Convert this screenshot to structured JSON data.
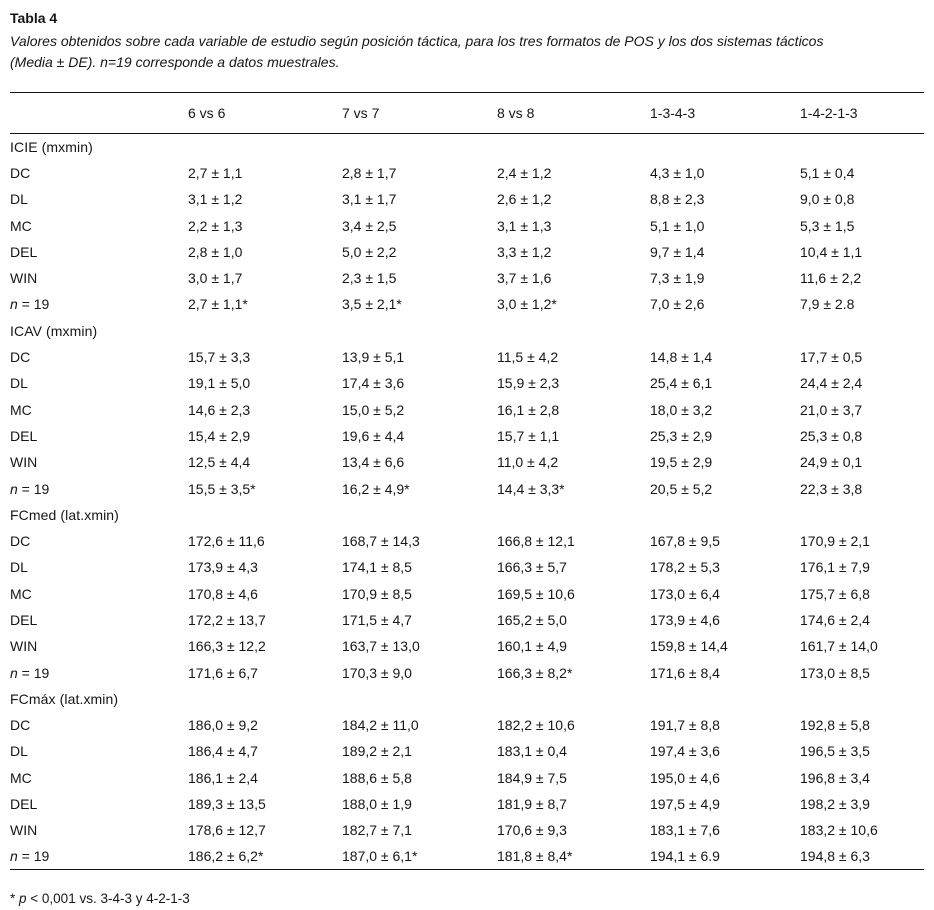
{
  "title": "Tabla 4",
  "caption": "Valores obtenidos sobre cada variable de estudio según posición táctica, para los tres formatos de POS y los dos sistemas tácticos (Media ± DE). n=19 corresponde a datos muestrales.",
  "table": {
    "columns": [
      "",
      "6 vs 6",
      "7 vs 7",
      "8 vs 8",
      "1-3-4-3",
      "1-4-2-1-3"
    ],
    "sections": [
      {
        "header": "ICIE (mxmin)",
        "rows": [
          {
            "label": "DC",
            "values": [
              "2,7 ± 1,1",
              "2,8 ± 1,7",
              "2,4 ± 1,2",
              "4,3 ± 1,0",
              "5,1 ± 0,4"
            ]
          },
          {
            "label": "DL",
            "values": [
              "3,1 ± 1,2",
              "3,1 ± 1,7",
              "2,6 ± 1,2",
              "8,8 ± 2,3",
              "9,0 ± 0,8"
            ]
          },
          {
            "label": "MC",
            "values": [
              "2,2 ± 1,3",
              "3,4 ± 2,5",
              "3,1 ± 1,3",
              "5,1 ± 1,0",
              "5,3 ± 1,5"
            ]
          },
          {
            "label": "DEL",
            "values": [
              "2,8 ± 1,0",
              "5,0 ± 2,2",
              "3,3 ± 1,2",
              "9,7 ± 1,4",
              "10,4 ± 1,1"
            ]
          },
          {
            "label": "WIN",
            "values": [
              "3,0 ± 1,7",
              "2,3 ± 1,5",
              "3,7 ± 1,6",
              "7,3 ± 1,9",
              "11,6 ± 2,2"
            ]
          },
          {
            "label": "n = 19",
            "italic_first": true,
            "values": [
              "2,7 ± 1,1*",
              "3,5 ± 2,1*",
              "3,0 ± 1,2*",
              "7,0 ± 2,6",
              "7,9 ± 2.8"
            ]
          }
        ]
      },
      {
        "header": "ICAV (mxmin)",
        "rows": [
          {
            "label": "DC",
            "values": [
              "15,7 ± 3,3",
              "13,9 ± 5,1",
              "11,5 ± 4,2",
              "14,8 ± 1,4",
              "17,7 ± 0,5"
            ]
          },
          {
            "label": "DL",
            "values": [
              "19,1 ± 5,0",
              "17,4 ± 3,6",
              "15,9 ± 2,3",
              "25,4 ± 6,1",
              "24,4 ± 2,4"
            ]
          },
          {
            "label": "MC",
            "values": [
              "14,6 ± 2,3",
              "15,0 ± 5,2",
              "16,1 ± 2,8",
              "18,0 ± 3,2",
              "21,0 ± 3,7"
            ]
          },
          {
            "label": "DEL",
            "values": [
              "15,4 ± 2,9",
              "19,6 ± 4,4",
              "15,7 ± 1,1",
              "25,3 ± 2,9",
              "25,3 ± 0,8"
            ]
          },
          {
            "label": "WIN",
            "values": [
              "12,5 ± 4,4",
              "13,4 ± 6,6",
              "11,0 ± 4,2",
              "19,5 ± 2,9",
              "24,9 ± 0,1"
            ]
          },
          {
            "label": "n = 19",
            "italic_first": true,
            "values": [
              "15,5 ± 3,5*",
              "16,2 ± 4,9*",
              "14,4 ± 3,3*",
              "20,5 ± 5,2",
              "22,3 ± 3,8"
            ]
          }
        ]
      },
      {
        "header": "FCmed  (lat.xmin)",
        "rows": [
          {
            "label": "DC",
            "values": [
              "172,6 ± 11,6",
              "168,7 ± 14,3",
              "166,8 ± 12,1",
              "167,8 ± 9,5",
              "170,9 ± 2,1"
            ]
          },
          {
            "label": "DL",
            "values": [
              "173,9 ± 4,3",
              "174,1 ± 8,5",
              "166,3 ± 5,7",
              "178,2 ± 5,3",
              "176,1 ± 7,9"
            ]
          },
          {
            "label": "MC",
            "values": [
              "170,8 ± 4,6",
              "170,9 ± 8,5",
              "169,5 ± 10,6",
              "173,0 ± 6,4",
              "175,7 ± 6,8"
            ]
          },
          {
            "label": "DEL",
            "values": [
              "172,2 ± 13,7",
              "171,5 ± 4,7",
              "165,2 ± 5,0",
              "173,9 ± 4,6",
              "174,6 ± 2,4"
            ]
          },
          {
            "label": "WIN",
            "values": [
              "166,3 ± 12,2",
              "163,7 ± 13,0",
              "160,1 ± 4,9",
              "159,8 ± 14,4",
              "161,7 ± 14,0"
            ]
          },
          {
            "label": "n = 19",
            "italic_first": true,
            "values": [
              "171,6 ± 6,7",
              "170,3 ± 9,0",
              "166,3 ± 8,2*",
              "171,6 ± 8,4",
              "173,0 ± 8,5"
            ]
          }
        ]
      },
      {
        "header": "FCmáx (lat.xmin)",
        "rows": [
          {
            "label": "DC",
            "values": [
              "186,0 ± 9,2",
              "184,2 ± 11,0",
              "182,2 ± 10,6",
              "191,7 ± 8,8",
              "192,8 ± 5,8"
            ]
          },
          {
            "label": "DL",
            "values": [
              "186,4 ± 4,7",
              "189,2 ± 2,1",
              "183,1 ± 0,4",
              "197,4 ± 3,6",
              "196,5 ± 3,5"
            ]
          },
          {
            "label": "MC",
            "values": [
              "186,1 ± 2,4",
              "188,6 ± 5,8",
              "184,9 ± 7,5",
              "195,0 ± 4,6",
              "196,8 ± 3,4"
            ]
          },
          {
            "label": "DEL",
            "values": [
              "189,3 ± 13,5",
              "188,0 ± 1,9",
              "181,9 ± 8,7",
              "197,5 ± 4,9",
              "198,2 ± 3,9"
            ]
          },
          {
            "label": "WIN",
            "values": [
              "178,6 ± 12,7",
              "182,7 ± 7,1",
              "170,6 ± 9,3",
              "183,1 ± 7,6",
              "183,2 ± 10,6"
            ]
          },
          {
            "label": "n = 19",
            "italic_first": true,
            "values": [
              "186,2 ± 6,2*",
              "187,0 ± 6,1*",
              "181,8 ± 8,4*",
              "194,1 ± 6.9",
              "194,8 ± 6,3"
            ]
          }
        ]
      }
    ]
  },
  "footnote": {
    "marker": "* ",
    "var": "p",
    "text": " < 0,001 vs. 3-4-3 y 4-2-1-3"
  },
  "colors": {
    "text": "#161616",
    "rule": "#111111",
    "background": "#ffffff"
  }
}
